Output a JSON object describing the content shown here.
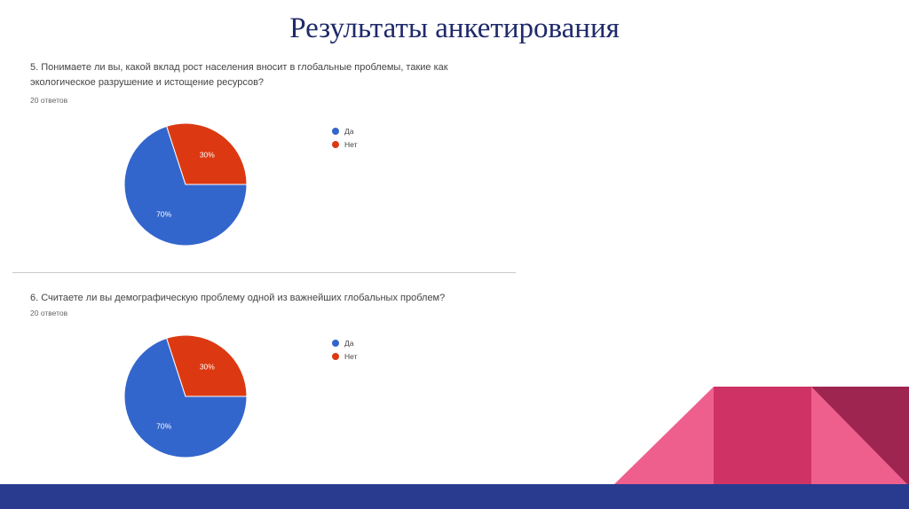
{
  "slide": {
    "title": "Результаты анкетирования"
  },
  "colors": {
    "yes": "#3366cc",
    "no": "#dc3912",
    "accent_pink": "#ee5f8e",
    "accent_crimson": "#cf3264",
    "accent_dark": "#9e2550",
    "bar": "#283b8e"
  },
  "chart_data": [
    {
      "type": "pie",
      "title": "5. Понимаете ли вы, какой вклад рост населения вносит в глобальные проблемы, такие как экологическое разрушение и истощение ресурсов?",
      "subtitle": "20 ответов",
      "categories": [
        "Да",
        "Нет"
      ],
      "values": [
        70,
        30
      ],
      "labels": [
        "70%",
        "30%"
      ],
      "legend_position": "right"
    },
    {
      "type": "pie",
      "title": "6. Считаете ли вы демографическую проблему одной из важнейших глобальных проблем?",
      "subtitle": "20 ответов",
      "categories": [
        "Да",
        "Нет"
      ],
      "values": [
        70,
        30
      ],
      "labels": [
        "70%",
        "30%"
      ],
      "legend_position": "right"
    }
  ]
}
